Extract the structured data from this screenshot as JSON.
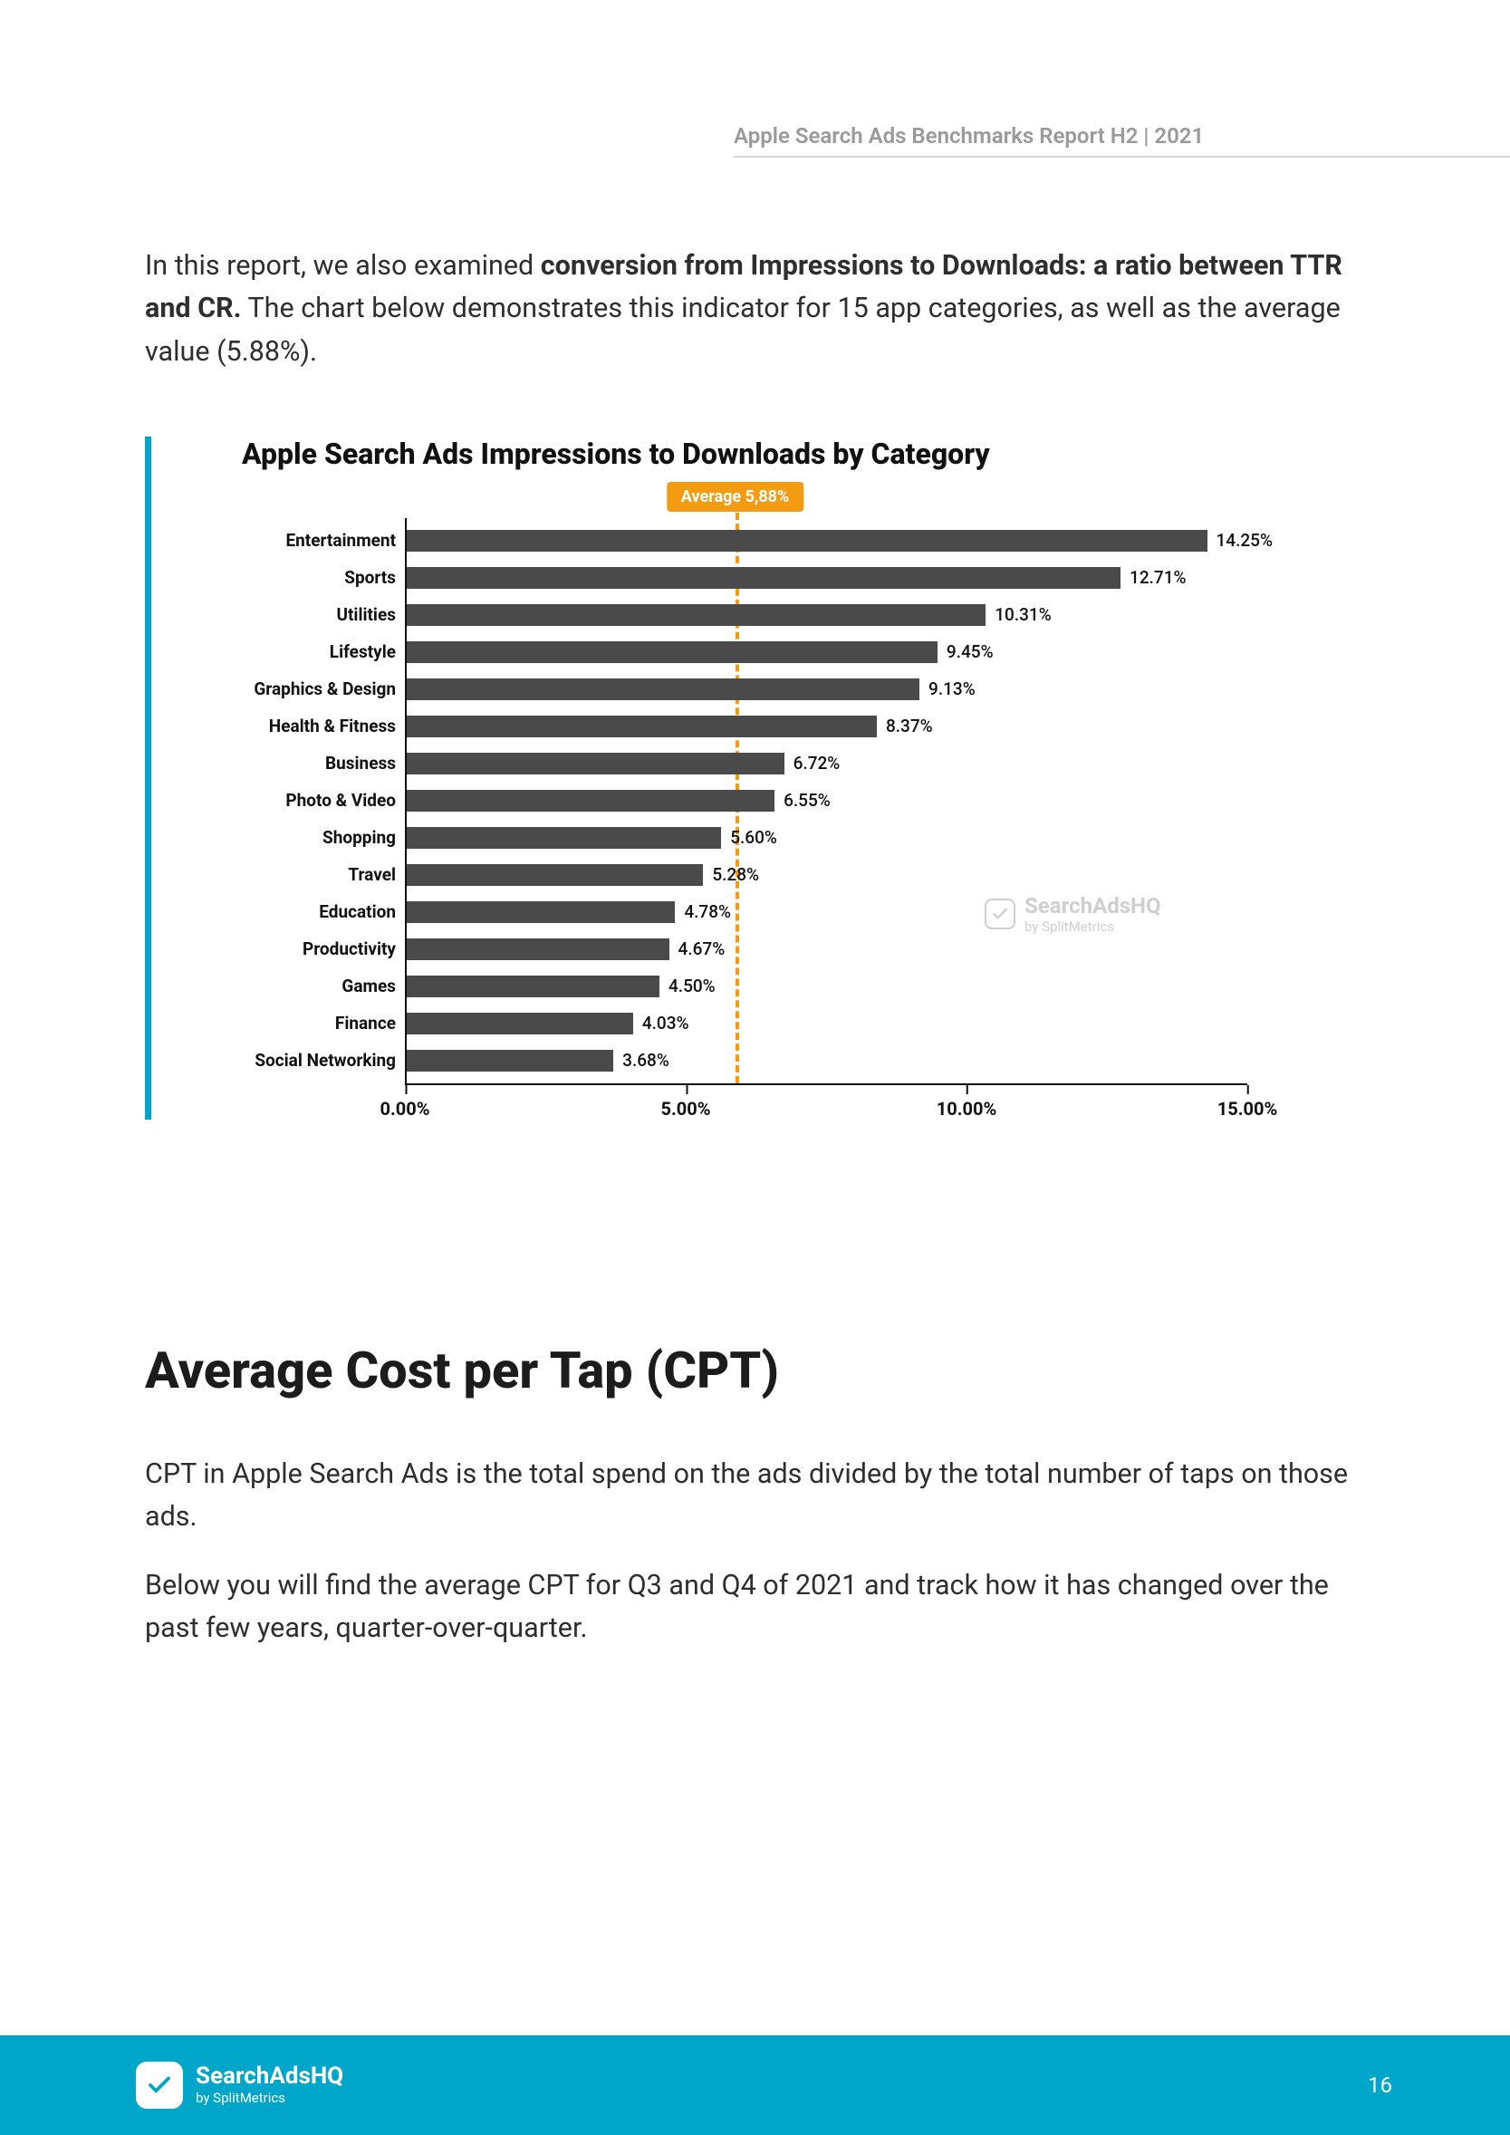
{
  "header": {
    "report_title": "Apple Search Ads Benchmarks Report H2 | 2021"
  },
  "intro": {
    "before_bold": "In this report, we also examined ",
    "bold": "conversion from Impressions to Downloads: a ratio between TTR and CR.",
    "after_bold": " The chart below demonstrates this indicator for 15 app categories, as well as the average value (5.88%)."
  },
  "chart": {
    "type": "bar-horizontal",
    "title": "Apple Search Ads Impressions to Downloads by Category",
    "average_label": "Average 5,88%",
    "average_value": 5.88,
    "xmin": 0.0,
    "xmax": 15.0,
    "xtick_step": 5.0,
    "xticks": [
      "0.00%",
      "5.00%",
      "10.00%",
      "15.00%"
    ],
    "bar_color": "#4a4a4a",
    "avg_color": "#f39c12",
    "axis_color": "#111111",
    "accent_color": "#00a6c9",
    "background_color": "#ffffff",
    "label_fontsize": 19,
    "title_fontsize": 32,
    "categories": [
      {
        "label": "Entertainment",
        "value": 14.25,
        "display": "14.25%"
      },
      {
        "label": "Sports",
        "value": 12.71,
        "display": "12.71%"
      },
      {
        "label": "Utilities",
        "value": 10.31,
        "display": "10.31%"
      },
      {
        "label": "Lifestyle",
        "value": 9.45,
        "display": "9.45%"
      },
      {
        "label": "Graphics & Design",
        "value": 9.13,
        "display": "9.13%"
      },
      {
        "label": "Health & Fitness",
        "value": 8.37,
        "display": "8.37%"
      },
      {
        "label": "Business",
        "value": 6.72,
        "display": "6.72%"
      },
      {
        "label": "Photo & Video",
        "value": 6.55,
        "display": "6.55%"
      },
      {
        "label": "Shopping",
        "value": 5.6,
        "display": "5.60%"
      },
      {
        "label": "Travel",
        "value": 5.28,
        "display": "5.28%"
      },
      {
        "label": "Education",
        "value": 4.78,
        "display": "4.78%"
      },
      {
        "label": "Productivity",
        "value": 4.67,
        "display": "4.67%"
      },
      {
        "label": "Games",
        "value": 4.5,
        "display": "4.50%"
      },
      {
        "label": "Finance",
        "value": 4.03,
        "display": "4.03%"
      },
      {
        "label": "Social Networking",
        "value": 3.68,
        "display": "3.68%"
      }
    ],
    "watermark": {
      "brand": "SearchAdsHQ",
      "sub": "by SplitMetrics"
    }
  },
  "section2": {
    "heading": "Average Cost per Tap (CPT)",
    "p1": "CPT in Apple Search Ads is the total spend on the ads divided by the total number of taps on those ads.",
    "p2": "Below you will find the average CPT for Q3 and Q4 of 2021 and track how it has changed over the past few years, quarter-over-quarter."
  },
  "footer": {
    "brand": "SearchAdsHQ",
    "sub": "by SplitMetrics",
    "page": "16",
    "bg_color": "#00a6c9"
  }
}
